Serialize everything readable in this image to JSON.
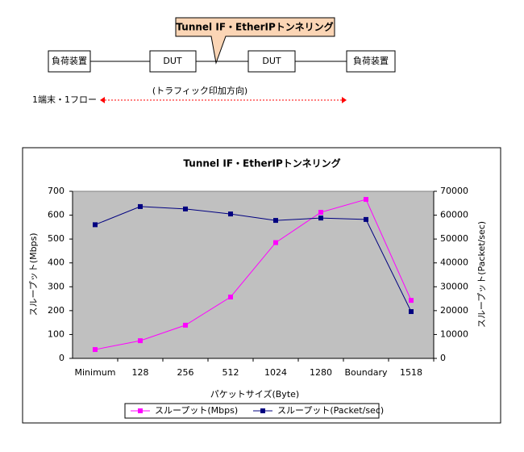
{
  "diagram": {
    "callout": "Tunnel IF・EtherIPトンネリング",
    "left_device": "負荷装置",
    "dut_1": "DUT",
    "dut_2": "DUT",
    "right_device": "負荷装置",
    "direction": "(トラフィック印加方向)",
    "flow": "1端末・1フロー"
  },
  "chart_data": {
    "type": "line",
    "title": "Tunnel IF・EtherIPトンネリング",
    "x_label": "パケットサイズ(Byte)",
    "y_label": "スループット(Mbps)",
    "y2_label": "スループット(Packet/sec)",
    "categories": [
      "Minimum",
      "128",
      "256",
      "512",
      "1024",
      "1280",
      "Boundary",
      "1518"
    ],
    "series": [
      {
        "name": "スループット(Mbps)",
        "color": "#ff00ff",
        "values": [
          37,
          74,
          139,
          257,
          485,
          612,
          666,
          243
        ]
      },
      {
        "name": "スループット(Packet/sec)",
        "color": "#000080",
        "axis": "y2",
        "values": [
          56000,
          63600,
          62600,
          60500,
          57800,
          58800,
          58200,
          19600
        ]
      }
    ],
    "ylim": [
      0,
      700
    ],
    "yticks": [
      0,
      100,
      200,
      300,
      400,
      500,
      600,
      700
    ],
    "y2lim": [
      0,
      70000
    ],
    "y2ticks": [
      0,
      10000,
      20000,
      30000,
      40000,
      50000,
      60000,
      70000
    ],
    "plot_background": "#c0c0c0",
    "legend": "bottom"
  }
}
